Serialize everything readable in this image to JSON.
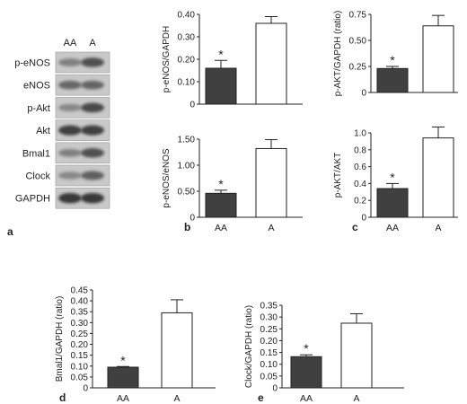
{
  "western_blot": {
    "panel_letter": "a",
    "lanes": [
      "AA",
      "A"
    ],
    "rows": [
      {
        "label": "p-eNOS",
        "intensity": [
          0.45,
          0.75
        ]
      },
      {
        "label": "eNOS",
        "intensity": [
          0.6,
          0.62
        ]
      },
      {
        "label": "p-Akt",
        "intensity": [
          0.4,
          0.8
        ]
      },
      {
        "label": "Akt",
        "intensity": [
          0.85,
          0.85
        ]
      },
      {
        "label": "Bmal1",
        "intensity": [
          0.45,
          0.75
        ]
      },
      {
        "label": "Clock",
        "intensity": [
          0.4,
          0.65
        ]
      },
      {
        "label": "GAPDH",
        "intensity": [
          0.9,
          0.9
        ]
      }
    ]
  },
  "colors": {
    "bar_aa": "#404040",
    "bar_a": "#ffffff",
    "bar_stroke": "#222222",
    "axis": "#222222"
  },
  "chart_data": [
    {
      "id": "peNOS-gapdh",
      "type": "bar",
      "panel_letter": "",
      "categories": [
        "AA",
        "A"
      ],
      "values": [
        0.16,
        0.36
      ],
      "errors": [
        0.035,
        0.03
      ],
      "significance": [
        "*",
        ""
      ],
      "ylabel": "p-eNOS/GAPDH",
      "ylim": [
        0,
        0.4
      ],
      "yticks": [
        0,
        0.1,
        0.2,
        0.3,
        0.4
      ],
      "ytick_labels": [
        "0",
        "0.10",
        "0.20",
        "0.30",
        "0.40"
      ],
      "show_x_labels": false
    },
    {
      "id": "pakt-gapdh",
      "type": "bar",
      "panel_letter": "",
      "categories": [
        "AA",
        "A"
      ],
      "values": [
        0.23,
        0.64
      ],
      "errors": [
        0.02,
        0.1
      ],
      "significance": [
        "*",
        ""
      ],
      "ylabel": "p-AKT/GAPDH (ratio)",
      "ylim": [
        0,
        0.75
      ],
      "yticks": [
        0,
        0.25,
        0.5,
        0.75
      ],
      "ytick_labels": [
        "0",
        "0.25",
        "0.50",
        "0.75"
      ],
      "show_x_labels": false
    },
    {
      "id": "peNOS-eNOS",
      "type": "bar",
      "panel_letter": "b",
      "categories": [
        "AA",
        "A"
      ],
      "values": [
        0.46,
        1.32
      ],
      "errors": [
        0.06,
        0.17
      ],
      "significance": [
        "*",
        ""
      ],
      "ylabel": "p-eNOS/eNOS",
      "ylim": [
        0,
        1.5
      ],
      "yticks": [
        0,
        0.5,
        1.0,
        1.5
      ],
      "ytick_labels": [
        "0",
        "0.50",
        "1.00",
        "1.50"
      ],
      "show_x_labels": true
    },
    {
      "id": "pakt-akt",
      "type": "bar",
      "panel_letter": "c",
      "categories": [
        "AA",
        "A"
      ],
      "values": [
        0.34,
        0.94
      ],
      "errors": [
        0.06,
        0.13
      ],
      "significance": [
        "*",
        ""
      ],
      "ylabel": "p-AKT/AKT",
      "ylim": [
        0,
        1.0
      ],
      "yticks": [
        0,
        0.2,
        0.4,
        0.6,
        0.8,
        1.0
      ],
      "ytick_labels": [
        "0",
        "0.2",
        "0.4",
        "0.6",
        "0.8",
        "1.0"
      ],
      "show_x_labels": true
    },
    {
      "id": "bmal1-gapdh",
      "type": "bar",
      "panel_letter": "d",
      "categories": [
        "AA",
        "A"
      ],
      "values": [
        0.095,
        0.345
      ],
      "errors": [
        0.003,
        0.06
      ],
      "significance": [
        "*",
        ""
      ],
      "ylabel": "Bmal1/GAPDH (ratio)",
      "ylim": [
        0,
        0.45
      ],
      "yticks": [
        0,
        0.05,
        0.1,
        0.15,
        0.2,
        0.25,
        0.3,
        0.35,
        0.4,
        0.45
      ],
      "ytick_labels": [
        "0",
        "0.05",
        "0.10",
        "0.15",
        "0.20",
        "0.25",
        "0.30",
        "0.35",
        "0.40",
        "0.45"
      ],
      "show_x_labels": true
    },
    {
      "id": "clock-gapdh",
      "type": "bar",
      "panel_letter": "e",
      "categories": [
        "AA",
        "A"
      ],
      "values": [
        0.132,
        0.274
      ],
      "errors": [
        0.008,
        0.04
      ],
      "significance": [
        "*",
        ""
      ],
      "ylabel": "Clock/GAPDH (ratio)",
      "ylim": [
        0,
        0.35
      ],
      "yticks": [
        0,
        0.05,
        0.1,
        0.15,
        0.2,
        0.25,
        0.3,
        0.35
      ],
      "ytick_labels": [
        "0",
        "0.05",
        "0.10",
        "0.15",
        "0.20",
        "0.25",
        "0.30",
        "0.35"
      ],
      "show_x_labels": true
    }
  ]
}
